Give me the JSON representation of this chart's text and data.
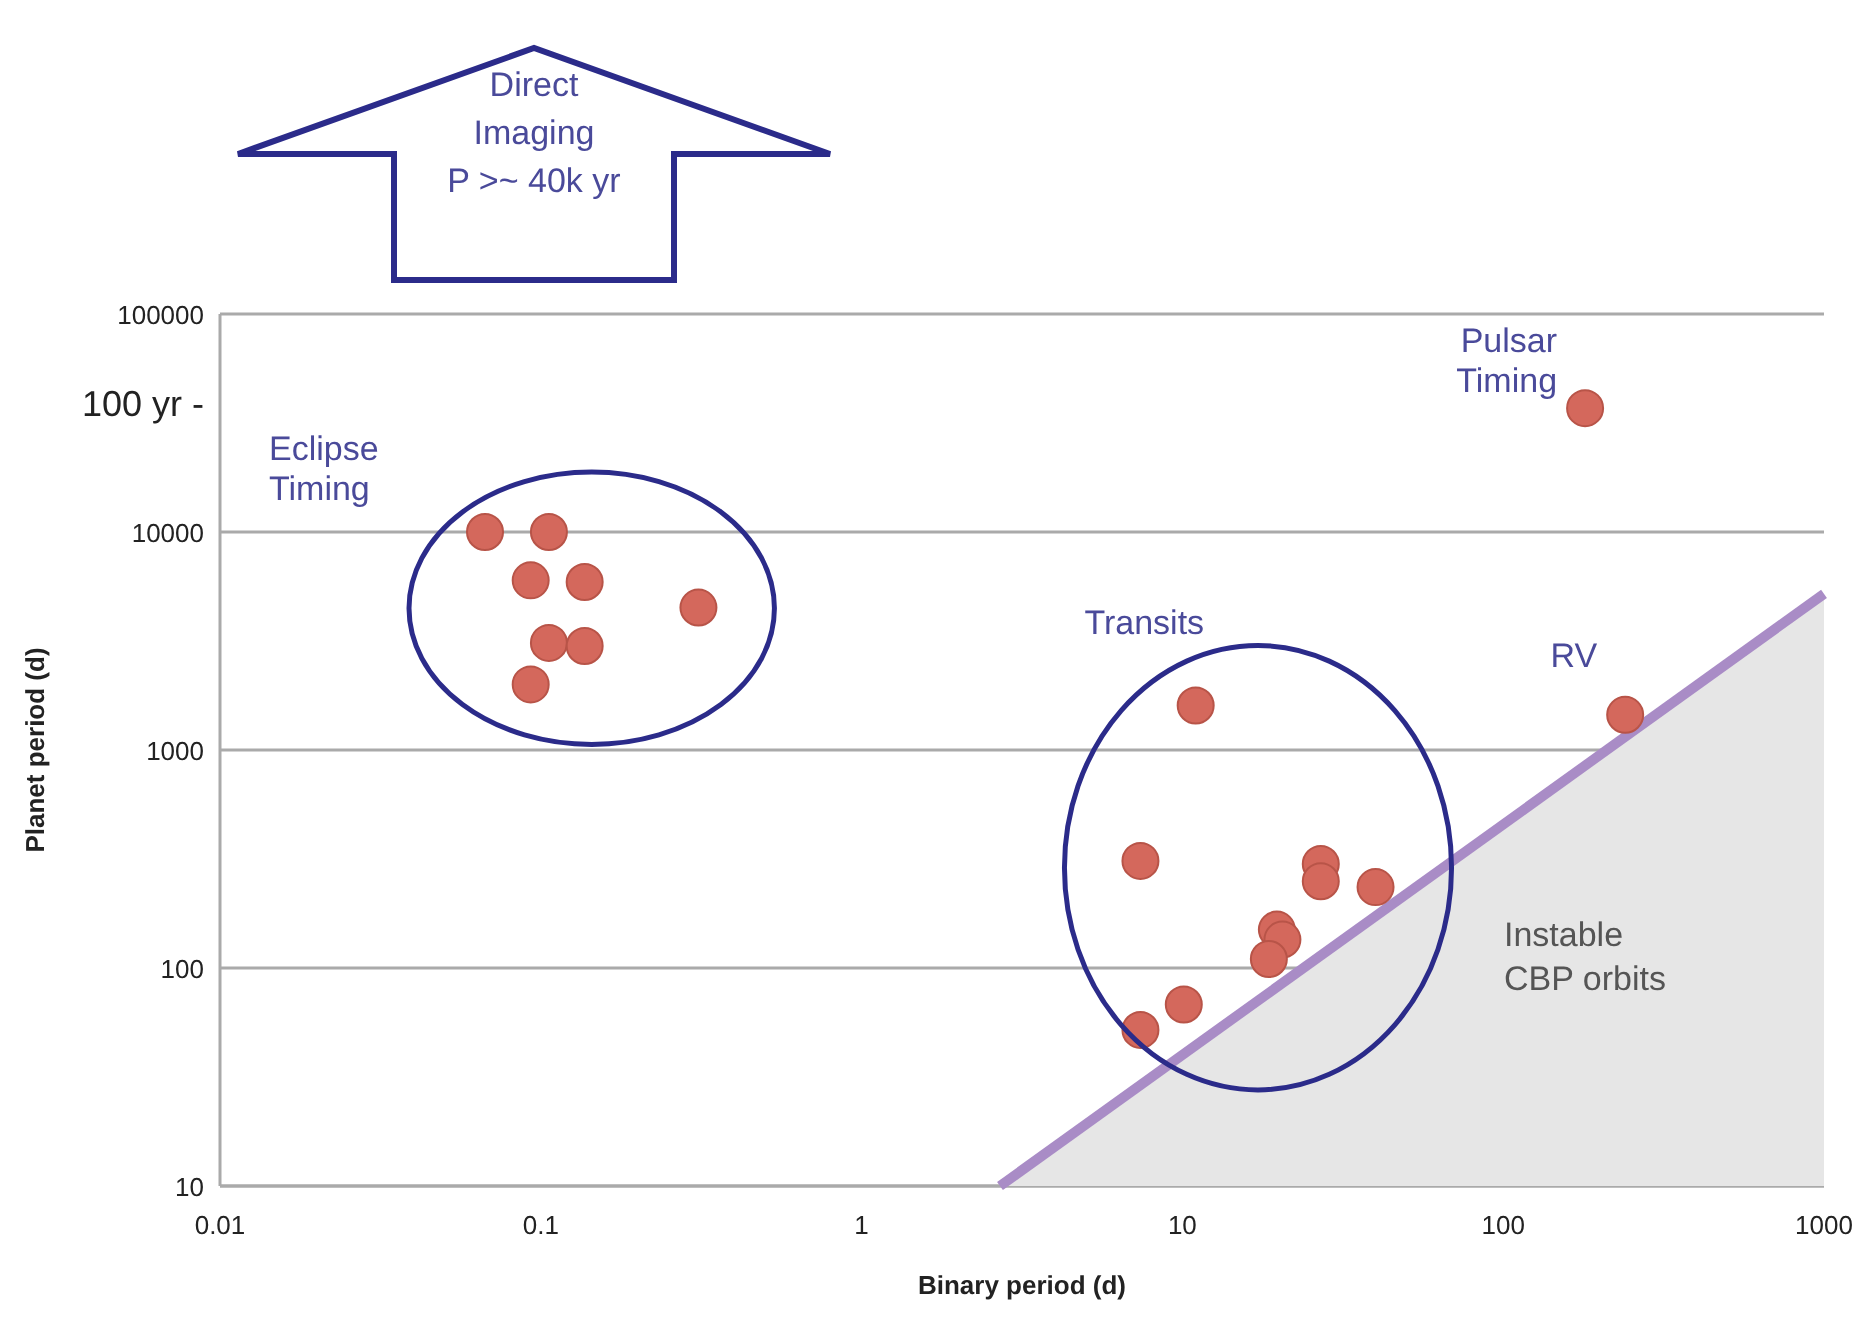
{
  "chart_data": {
    "type": "scatter",
    "xlabel": "Binary period (d)",
    "ylabel": "Planet period (d)",
    "log": "xy",
    "grid": "y",
    "marker": "circle",
    "xlim": [
      0.01,
      1000
    ],
    "xticks": [
      0.01,
      0.1,
      1,
      10,
      100,
      1000
    ],
    "ylim": [
      10,
      100000
    ],
    "yticks": [
      10,
      100,
      1000,
      10000,
      100000
    ],
    "series": [
      {
        "name": "Eclipse Timing",
        "color": "#d4685c",
        "x": [
          0.067,
          0.106,
          0.093,
          0.137,
          0.31,
          0.106,
          0.137,
          0.093
        ],
        "values": [
          10000,
          10000,
          6000,
          5900,
          4500,
          3100,
          3000,
          2000
        ]
      },
      {
        "name": "Transits",
        "color": "#d4685c",
        "x": [
          11,
          7.4,
          27,
          27,
          40,
          19.7,
          20.5,
          18.6,
          10.1,
          7.4
        ],
        "values": [
          1600,
          310,
          300,
          250,
          235,
          150,
          135,
          110,
          68,
          52
        ]
      },
      {
        "name": "RV",
        "color": "#d4685c",
        "x": [
          240
        ],
        "values": [
          1450
        ]
      },
      {
        "name": "Pulsar Timing",
        "color": "#d4685c",
        "x": [
          180
        ],
        "values": [
          37000
        ]
      },
      {
        "type": "area",
        "marker": "none",
        "color": "#a98cc6",
        "x": [
          2.7,
          1000
        ],
        "values": [
          10,
          5200
        ]
      }
    ],
    "annotations": [
      "Direct Imaging P >~ 40k yr",
      "100 yr -",
      "Instable CBP orbits"
    ]
  }
}
